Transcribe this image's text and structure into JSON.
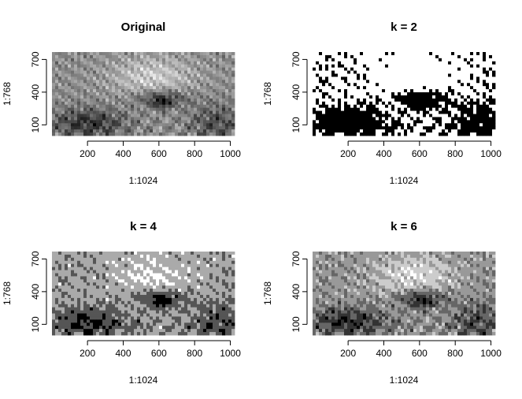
{
  "chart_data": [
    {
      "type": "heatmap",
      "title": "Original",
      "xlabel": "1:1024",
      "ylabel": "1:768",
      "xlim": [
        1,
        1024
      ],
      "ylim": [
        1,
        768
      ],
      "x_ticks": [
        200,
        400,
        600,
        800,
        1000
      ],
      "y_ticks": [
        100,
        400,
        700
      ],
      "grayscale": true,
      "levels": "continuous"
    },
    {
      "type": "heatmap",
      "title": "k = 2",
      "xlabel": "1:1024",
      "ylabel": "1:768",
      "xlim": [
        1,
        1024
      ],
      "ylim": [
        1,
        768
      ],
      "x_ticks": [
        200,
        400,
        600,
        800,
        1000
      ],
      "y_ticks": [
        100,
        400,
        700
      ],
      "grayscale": true,
      "levels": 2
    },
    {
      "type": "heatmap",
      "title": "k = 4",
      "xlabel": "1:1024",
      "ylabel": "1:768",
      "xlim": [
        1,
        1024
      ],
      "ylim": [
        1,
        768
      ],
      "x_ticks": [
        200,
        400,
        600,
        800,
        1000
      ],
      "y_ticks": [
        100,
        400,
        700
      ],
      "grayscale": true,
      "levels": 4
    },
    {
      "type": "heatmap",
      "title": "k = 6",
      "xlabel": "1:1024",
      "ylabel": "1:768",
      "xlim": [
        1,
        1024
      ],
      "ylim": [
        1,
        768
      ],
      "x_ticks": [
        200,
        400,
        600,
        800,
        1000
      ],
      "y_ticks": [
        100,
        400,
        700
      ],
      "grayscale": true,
      "levels": 6
    }
  ],
  "style": {
    "background": "#ffffff",
    "axis_color": "#000000",
    "text_color": "#000000"
  }
}
